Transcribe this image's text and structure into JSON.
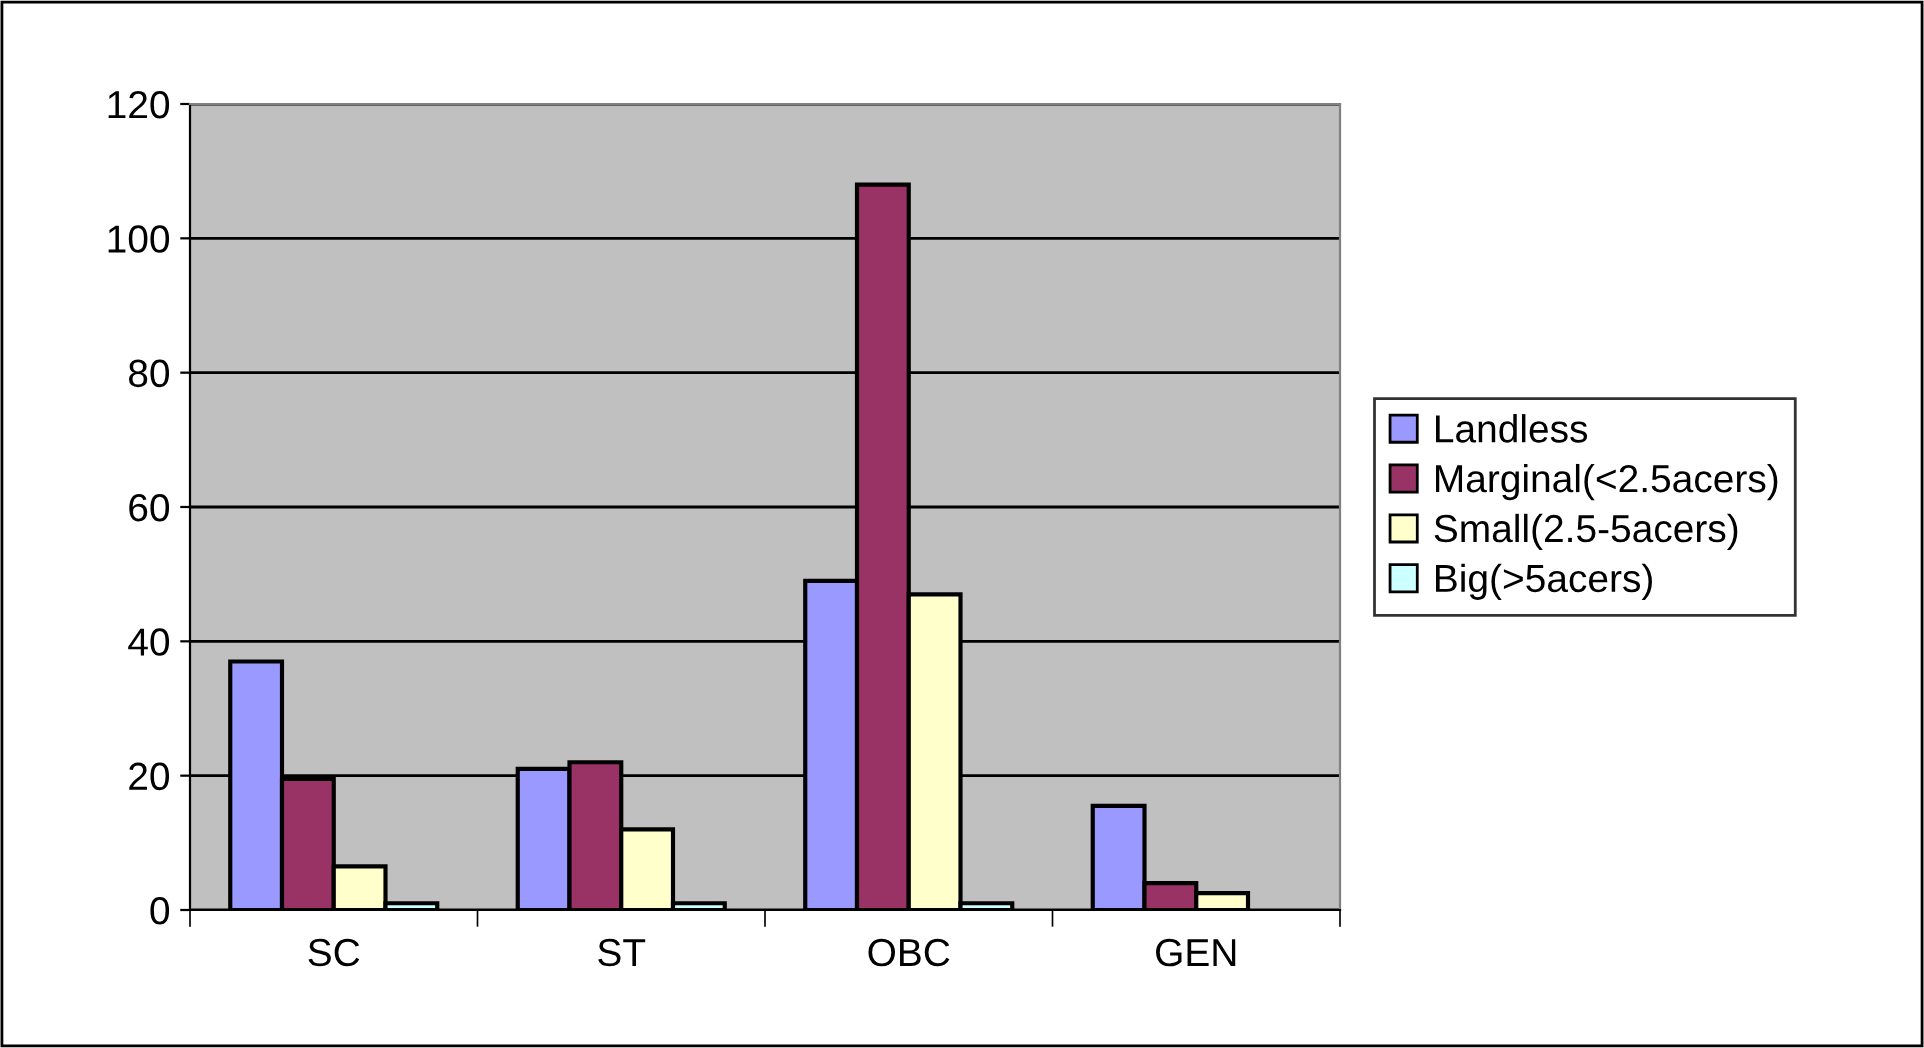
{
  "chart_data": {
    "type": "bar",
    "categories": [
      "SC",
      "ST",
      "OBC",
      "GEN"
    ],
    "series": [
      {
        "name": "Landless",
        "color": "#9999ff",
        "values": [
          37,
          21,
          49,
          15.5
        ]
      },
      {
        "name": "Marginal(<2.5acers)",
        "color": "#993366",
        "values": [
          19.5,
          22,
          108,
          4
        ]
      },
      {
        "name": "Small(2.5-5acers)",
        "color": "#ffffcc",
        "values": [
          6.5,
          12,
          47,
          2.5
        ]
      },
      {
        "name": "Big(>5acers)",
        "color": "#ccffff",
        "values": [
          1,
          1,
          1,
          null
        ]
      }
    ],
    "ylim": [
      0,
      120
    ],
    "yticks": [
      0,
      20,
      40,
      60,
      80,
      100,
      120
    ],
    "grid": "y",
    "legend": "right"
  }
}
